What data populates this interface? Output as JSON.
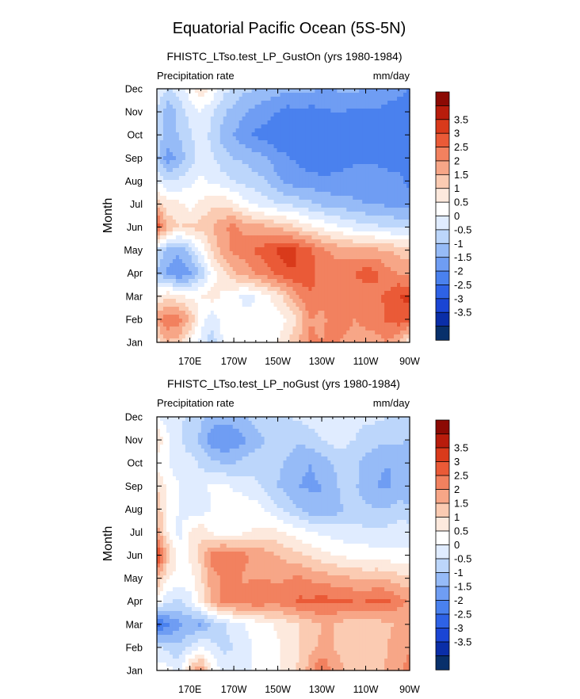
{
  "figure": {
    "title": "Equatorial Pacific Ocean (5S-5N)",
    "colors": {
      "levels": [
        "#08306b",
        "#0a2ea8",
        "#1a45d4",
        "#2e62e6",
        "#4a81ee",
        "#6f9df3",
        "#96bbf7",
        "#bcd6fb",
        "#e0ecff",
        "#ffffff",
        "#fde9dd",
        "#fbcbb2",
        "#f7a687",
        "#f2815f",
        "#ea5a37",
        "#d93a1b",
        "#b81c0c",
        "#8c0a04"
      ]
    }
  },
  "chart_data": [
    {
      "type": "heatmap",
      "title": "FHISTC_LTso.test_LP_GustOn (yrs 1980-1984)",
      "left_label": "Precipitation rate",
      "right_label": "mm/day",
      "ylabel": "Month",
      "x_ticks": [
        "170E",
        "170W",
        "150W",
        "130W",
        "110W",
        "90W"
      ],
      "x_tick_lon": [
        170,
        190,
        210,
        230,
        250,
        270
      ],
      "xlim": [
        155,
        270
      ],
      "y_ticks": [
        "Jan",
        "Feb",
        "Mar",
        "Apr",
        "May",
        "Jun",
        "Jul",
        "Aug",
        "Sep",
        "Oct",
        "Nov",
        "Dec"
      ],
      "colorbar_levels": [
        "3.5",
        "3",
        "2.5",
        "2",
        "1.5",
        "1",
        "0.5",
        "0",
        "-0.5",
        "-1",
        "-1.5",
        "-2",
        "-2.5",
        "-3",
        "-3.5"
      ],
      "lon_grid": [
        155,
        160,
        165,
        170,
        175,
        180,
        185,
        190,
        195,
        200,
        205,
        210,
        215,
        220,
        225,
        230,
        235,
        240,
        245,
        250,
        255,
        260,
        265,
        270
      ],
      "values": [
        [
          0.8,
          1.5,
          1.2,
          0.3,
          -0.2,
          -0.8,
          0.0,
          0.5,
          0.3,
          0.2,
          0.3,
          0.5,
          1.0,
          1.6,
          2.1,
          2.0,
          2.2,
          1.9,
          1.6,
          1.7,
          1.8,
          2.0,
          1.5,
          0.4
        ],
        [
          1.8,
          2.4,
          2.3,
          1.5,
          0.3,
          -0.3,
          0.2,
          0.4,
          0.2,
          0.1,
          0.2,
          0.2,
          0.6,
          1.2,
          2.0,
          1.8,
          2.3,
          2.4,
          2.0,
          2.2,
          2.3,
          2.6,
          2.8,
          2.8
        ],
        [
          0.5,
          0.9,
          0.6,
          0.3,
          0.5,
          0.7,
          0.4,
          0.2,
          -0.2,
          0.0,
          0.4,
          0.8,
          1.4,
          2.0,
          2.5,
          2.3,
          2.5,
          2.3,
          2.1,
          2.2,
          2.4,
          2.6,
          3.0,
          3.1
        ],
        [
          -1.0,
          -1.6,
          -2.0,
          -1.6,
          -0.9,
          0.2,
          0.9,
          1.4,
          1.7,
          2.0,
          2.3,
          2.6,
          2.9,
          3.0,
          2.6,
          2.4,
          2.2,
          2.4,
          2.5,
          2.8,
          2.6,
          2.2,
          2.0,
          1.8
        ],
        [
          -0.6,
          -1.2,
          -1.4,
          -0.8,
          0.1,
          1.1,
          1.7,
          2.1,
          2.3,
          2.6,
          2.8,
          3.1,
          3.3,
          2.9,
          2.6,
          2.1,
          1.9,
          1.8,
          1.7,
          1.6,
          1.6,
          1.5,
          1.3,
          1.2
        ],
        [
          2.9,
          1.4,
          1.0,
          1.1,
          1.2,
          1.5,
          1.9,
          2.2,
          1.8,
          1.7,
          1.6,
          1.4,
          1.2,
          0.9,
          0.6,
          0.4,
          0.2,
          0.0,
          -0.2,
          -0.3,
          -0.4,
          -0.5,
          -0.6,
          -0.6
        ],
        [
          1.3,
          0.7,
          0.6,
          0.3,
          0.6,
          0.9,
          0.9,
          0.6,
          0.2,
          -0.1,
          -0.3,
          -0.5,
          -0.6,
          -0.7,
          -0.9,
          -1.1,
          -1.2,
          -1.3,
          -1.4,
          -1.5,
          -1.5,
          -1.6,
          -1.7,
          -1.8
        ],
        [
          -0.1,
          -0.5,
          -0.4,
          -0.1,
          0.1,
          -0.1,
          -0.3,
          -0.5,
          -0.7,
          -0.8,
          -1.0,
          -1.4,
          -1.7,
          -1.8,
          -1.8,
          -1.9,
          -1.9,
          -1.9,
          -1.8,
          -1.8,
          -1.8,
          -1.9,
          -1.9,
          -2.1
        ],
        [
          -0.9,
          -1.8,
          -1.3,
          -0.8,
          -0.2,
          -0.4,
          -0.8,
          -1.0,
          -1.1,
          -1.3,
          -1.5,
          -1.8,
          -2.0,
          -2.1,
          -2.3,
          -2.3,
          -2.2,
          -2.1,
          -2.1,
          -2.1,
          -2.1,
          -2.1,
          -2.2,
          -2.4
        ],
        [
          -0.7,
          -1.2,
          -1.0,
          -0.6,
          -0.1,
          -0.7,
          -1.2,
          -1.5,
          -1.9,
          -2.1,
          -2.2,
          -2.4,
          -2.3,
          -2.2,
          -2.2,
          -2.3,
          -2.2,
          -2.2,
          -2.1,
          -2.1,
          -2.1,
          -2.2,
          -2.2,
          -2.4
        ],
        [
          -0.6,
          -1.4,
          -0.8,
          -0.3,
          0.0,
          -0.4,
          -0.9,
          -1.2,
          -1.4,
          -1.7,
          -1.8,
          -2.0,
          -2.2,
          -2.1,
          -2.2,
          -2.1,
          -2.0,
          -2.0,
          -2.1,
          -2.1,
          -2.1,
          -2.2,
          -2.3,
          -2.4
        ],
        [
          -0.1,
          -0.5,
          -0.3,
          0.3,
          0.8,
          0.4,
          -0.3,
          -0.6,
          -0.9,
          -1.0,
          -1.2,
          -1.3,
          -1.4,
          -1.3,
          -1.4,
          -1.5,
          -1.5,
          -1.4,
          -1.4,
          -1.5,
          -1.5,
          -1.7,
          -1.8,
          -2.0
        ]
      ]
    },
    {
      "type": "heatmap",
      "title": "FHISTC_LTso.test_LP_noGust (yrs 1980-1984)",
      "left_label": "Precipitation rate",
      "right_label": "mm/day",
      "ylabel": "Month",
      "x_ticks": [
        "170E",
        "170W",
        "150W",
        "130W",
        "110W",
        "90W"
      ],
      "x_tick_lon": [
        170,
        190,
        210,
        230,
        250,
        270
      ],
      "xlim": [
        155,
        270
      ],
      "y_ticks": [
        "Jan",
        "Feb",
        "Mar",
        "Apr",
        "May",
        "Jun",
        "Jul",
        "Aug",
        "Sep",
        "Oct",
        "Nov",
        "Dec"
      ],
      "colorbar_levels": [
        "3.5",
        "3",
        "2.5",
        "2",
        "1.5",
        "1",
        "0.5",
        "0",
        "-0.5",
        "-1",
        "-1.5",
        "-2",
        "-2.5",
        "-3",
        "-3.5"
      ],
      "lon_grid": [
        155,
        160,
        165,
        170,
        175,
        180,
        185,
        190,
        195,
        200,
        205,
        210,
        215,
        220,
        225,
        230,
        235,
        240,
        245,
        250,
        255,
        260,
        265,
        270
      ],
      "values": [
        [
          0.3,
          0.2,
          -0.2,
          1.2,
          2.0,
          0.6,
          -0.2,
          -0.4,
          -0.3,
          0.2,
          0.2,
          0.4,
          0.8,
          1.1,
          1.8,
          2.6,
          1.9,
          1.5,
          1.3,
          1.2,
          1.3,
          1.6,
          1.8,
          2.3
        ],
        [
          -0.4,
          -0.7,
          -0.9,
          -0.4,
          0.1,
          -0.3,
          -0.6,
          -0.5,
          -0.2,
          0.1,
          0.3,
          0.4,
          0.7,
          1.0,
          1.4,
          1.6,
          1.5,
          1.3,
          1.2,
          1.1,
          1.2,
          1.5,
          1.8,
          1.9
        ],
        [
          -2.8,
          -2.1,
          -1.6,
          -1.4,
          -1.6,
          -1.0,
          -0.6,
          -0.3,
          0.0,
          0.2,
          0.4,
          0.6,
          0.8,
          1.0,
          1.3,
          1.5,
          1.5,
          1.3,
          1.2,
          1.1,
          1.2,
          1.4,
          1.6,
          1.8
        ],
        [
          0.3,
          -0.4,
          -0.6,
          -0.2,
          0.7,
          1.6,
          2.2,
          2.4,
          2.3,
          2.4,
          2.3,
          2.2,
          2.4,
          2.6,
          2.6,
          2.7,
          2.6,
          2.6,
          2.5,
          2.5,
          2.7,
          2.6,
          2.2,
          1.9
        ],
        [
          1.5,
          0.5,
          0.3,
          0.3,
          0.9,
          1.8,
          2.1,
          2.2,
          1.9,
          2.0,
          2.0,
          1.9,
          2.0,
          2.1,
          1.9,
          1.8,
          1.7,
          1.6,
          1.5,
          1.4,
          1.5,
          1.4,
          1.2,
          1.1
        ],
        [
          3.2,
          1.4,
          0.2,
          0.6,
          1.2,
          2.2,
          2.5,
          2.4,
          2.1,
          1.9,
          1.7,
          1.5,
          1.3,
          1.1,
          0.9,
          0.7,
          0.5,
          0.4,
          0.3,
          0.3,
          0.2,
          0.2,
          0.1,
          0.1
        ],
        [
          1.8,
          0.5,
          -0.2,
          0.5,
          0.9,
          0.4,
          0.1,
          0.2,
          0.4,
          0.6,
          0.7,
          0.6,
          0.4,
          0.2,
          0.0,
          -0.1,
          -0.2,
          -0.3,
          -0.3,
          -0.4,
          -0.4,
          -0.3,
          -0.2,
          -0.2
        ],
        [
          1.3,
          0.5,
          0.0,
          -0.3,
          -0.3,
          0.0,
          0.3,
          0.4,
          0.3,
          0.2,
          -0.1,
          -0.4,
          -0.7,
          -1.0,
          -1.3,
          -1.5,
          -1.3,
          -1.0,
          -0.8,
          -0.9,
          -1.0,
          -1.0,
          -0.8,
          -0.9
        ],
        [
          1.0,
          0.4,
          0.0,
          -0.3,
          -0.2,
          0.1,
          0.1,
          -0.1,
          -0.2,
          -0.4,
          -0.7,
          -1.0,
          -1.3,
          -1.5,
          -1.6,
          -1.5,
          -1.2,
          -0.8,
          -0.9,
          -1.3,
          -1.5,
          -1.6,
          -1.3,
          -1.4
        ],
        [
          0.3,
          0.0,
          -0.3,
          -0.3,
          -0.6,
          -0.9,
          -1.0,
          -1.0,
          -0.8,
          -0.7,
          -0.7,
          -0.9,
          -1.1,
          -1.4,
          -1.5,
          -1.3,
          -1.0,
          -0.7,
          -0.8,
          -1.2,
          -1.4,
          -1.5,
          -1.3,
          -1.4
        ],
        [
          1.0,
          0.1,
          -0.4,
          -0.8,
          -1.1,
          -1.8,
          -2.0,
          -1.9,
          -1.6,
          -1.2,
          -1.0,
          -0.9,
          -0.8,
          -0.9,
          -0.7,
          -0.5,
          -0.3,
          -0.4,
          -0.5,
          -0.7,
          -0.8,
          -0.9,
          -0.9,
          -1.0
        ],
        [
          0.0,
          -0.2,
          -0.4,
          -0.6,
          -0.9,
          -1.2,
          -1.3,
          -1.2,
          -1.0,
          -0.8,
          -0.7,
          -0.6,
          -0.5,
          -0.4,
          -0.3,
          -0.2,
          -0.2,
          -0.2,
          -0.3,
          -0.4,
          -0.4,
          -0.5,
          -0.5,
          -0.6
        ]
      ]
    }
  ]
}
